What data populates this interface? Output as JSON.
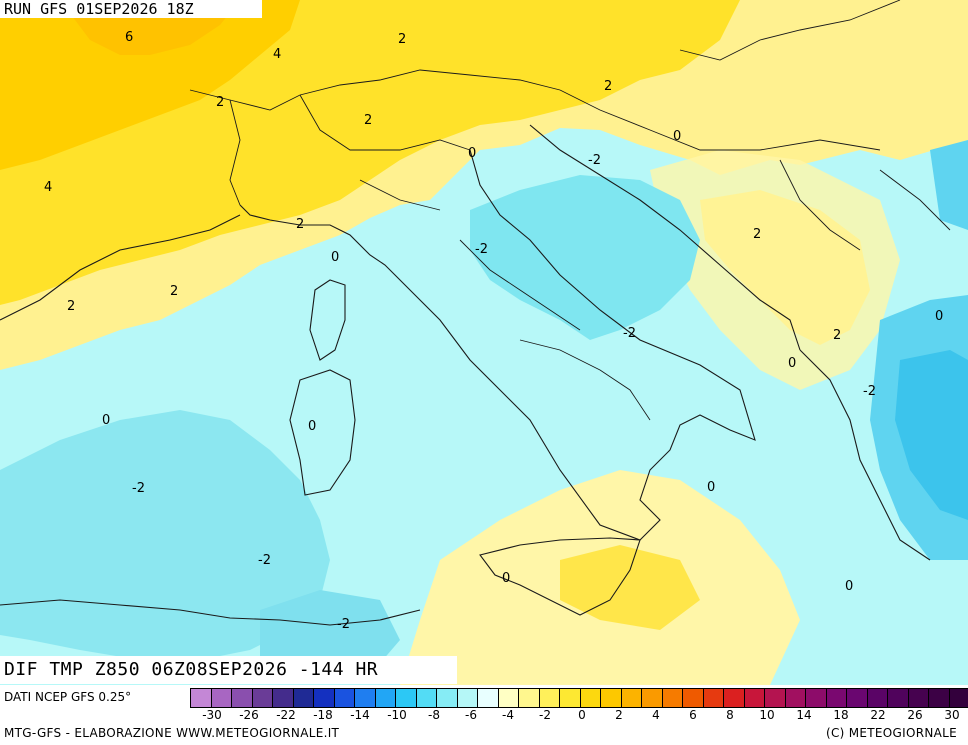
{
  "header": {
    "run_title": "RUN GFS 01SEP2026 18Z"
  },
  "footer": {
    "field_title": "DIF TMP Z850 06Z08SEP2026 -144 HR",
    "source": "DATI NCEP GFS 0.25°",
    "credit_left": "MTG-GFS - ELABORAZIONE WWW.METEOGIORNALE.IT",
    "credit_right": "(C) METEOGIORNALE"
  },
  "colors": {
    "sea_cold": "#aaf5f5",
    "cold_2": "#80e6f2",
    "cold_4": "#4ccdf0",
    "zero": "#d8fdfd",
    "warm_0": "#ffffc0",
    "warm_2": "#ffee55",
    "warm_4": "#ffd400",
    "warm_6": "#ffbf00"
  },
  "scale": {
    "labels": [
      "-30",
      "-26",
      "-22",
      "-18",
      "-14",
      "-10",
      "-8",
      "-6",
      "-4",
      "-2",
      "0",
      "2",
      "4",
      "6",
      "8",
      "10",
      "14",
      "18",
      "22",
      "26",
      "30"
    ],
    "colors": [
      "#c487d6",
      "#a866c2",
      "#8a4fae",
      "#6a3c97",
      "#442c8c",
      "#1f2a95",
      "#1430c0",
      "#1a53e0",
      "#1f7ef0",
      "#22a6f5",
      "#2cc8f5",
      "#53dcf5",
      "#86ecf5",
      "#b5f7f7",
      "#e8ffff",
      "#ffffc4",
      "#fff78e",
      "#fff05a",
      "#fde832",
      "#fcd80f",
      "#fdc800",
      "#fcb300",
      "#fa9a00",
      "#f67b00",
      "#ef5a00",
      "#e63a10",
      "#db2020",
      "#c8163a",
      "#b41450",
      "#a11060",
      "#8d0c6a",
      "#7a0870",
      "#6a0670",
      "#5a0466",
      "#50035c",
      "#46024f",
      "#3c0145",
      "#33003c"
    ]
  },
  "contour_labels": [
    {
      "text": "6"
    },
    {
      "text": "4"
    },
    {
      "text": "2"
    },
    {
      "text": "2"
    },
    {
      "text": "2"
    },
    {
      "text": "2"
    },
    {
      "text": "4"
    },
    {
      "text": "0"
    },
    {
      "text": "-2"
    },
    {
      "text": "0"
    },
    {
      "text": "2"
    },
    {
      "text": "2"
    },
    {
      "text": "0"
    },
    {
      "text": "-2"
    },
    {
      "text": "2"
    },
    {
      "text": "2"
    },
    {
      "text": "-2"
    },
    {
      "text": "0"
    },
    {
      "text": "2"
    },
    {
      "text": "0"
    },
    {
      "text": "-2"
    },
    {
      "text": "0"
    },
    {
      "text": "0"
    },
    {
      "text": "-2"
    },
    {
      "text": "0"
    },
    {
      "text": "-2"
    },
    {
      "text": "0"
    },
    {
      "text": "-2"
    },
    {
      "text": "0"
    }
  ]
}
